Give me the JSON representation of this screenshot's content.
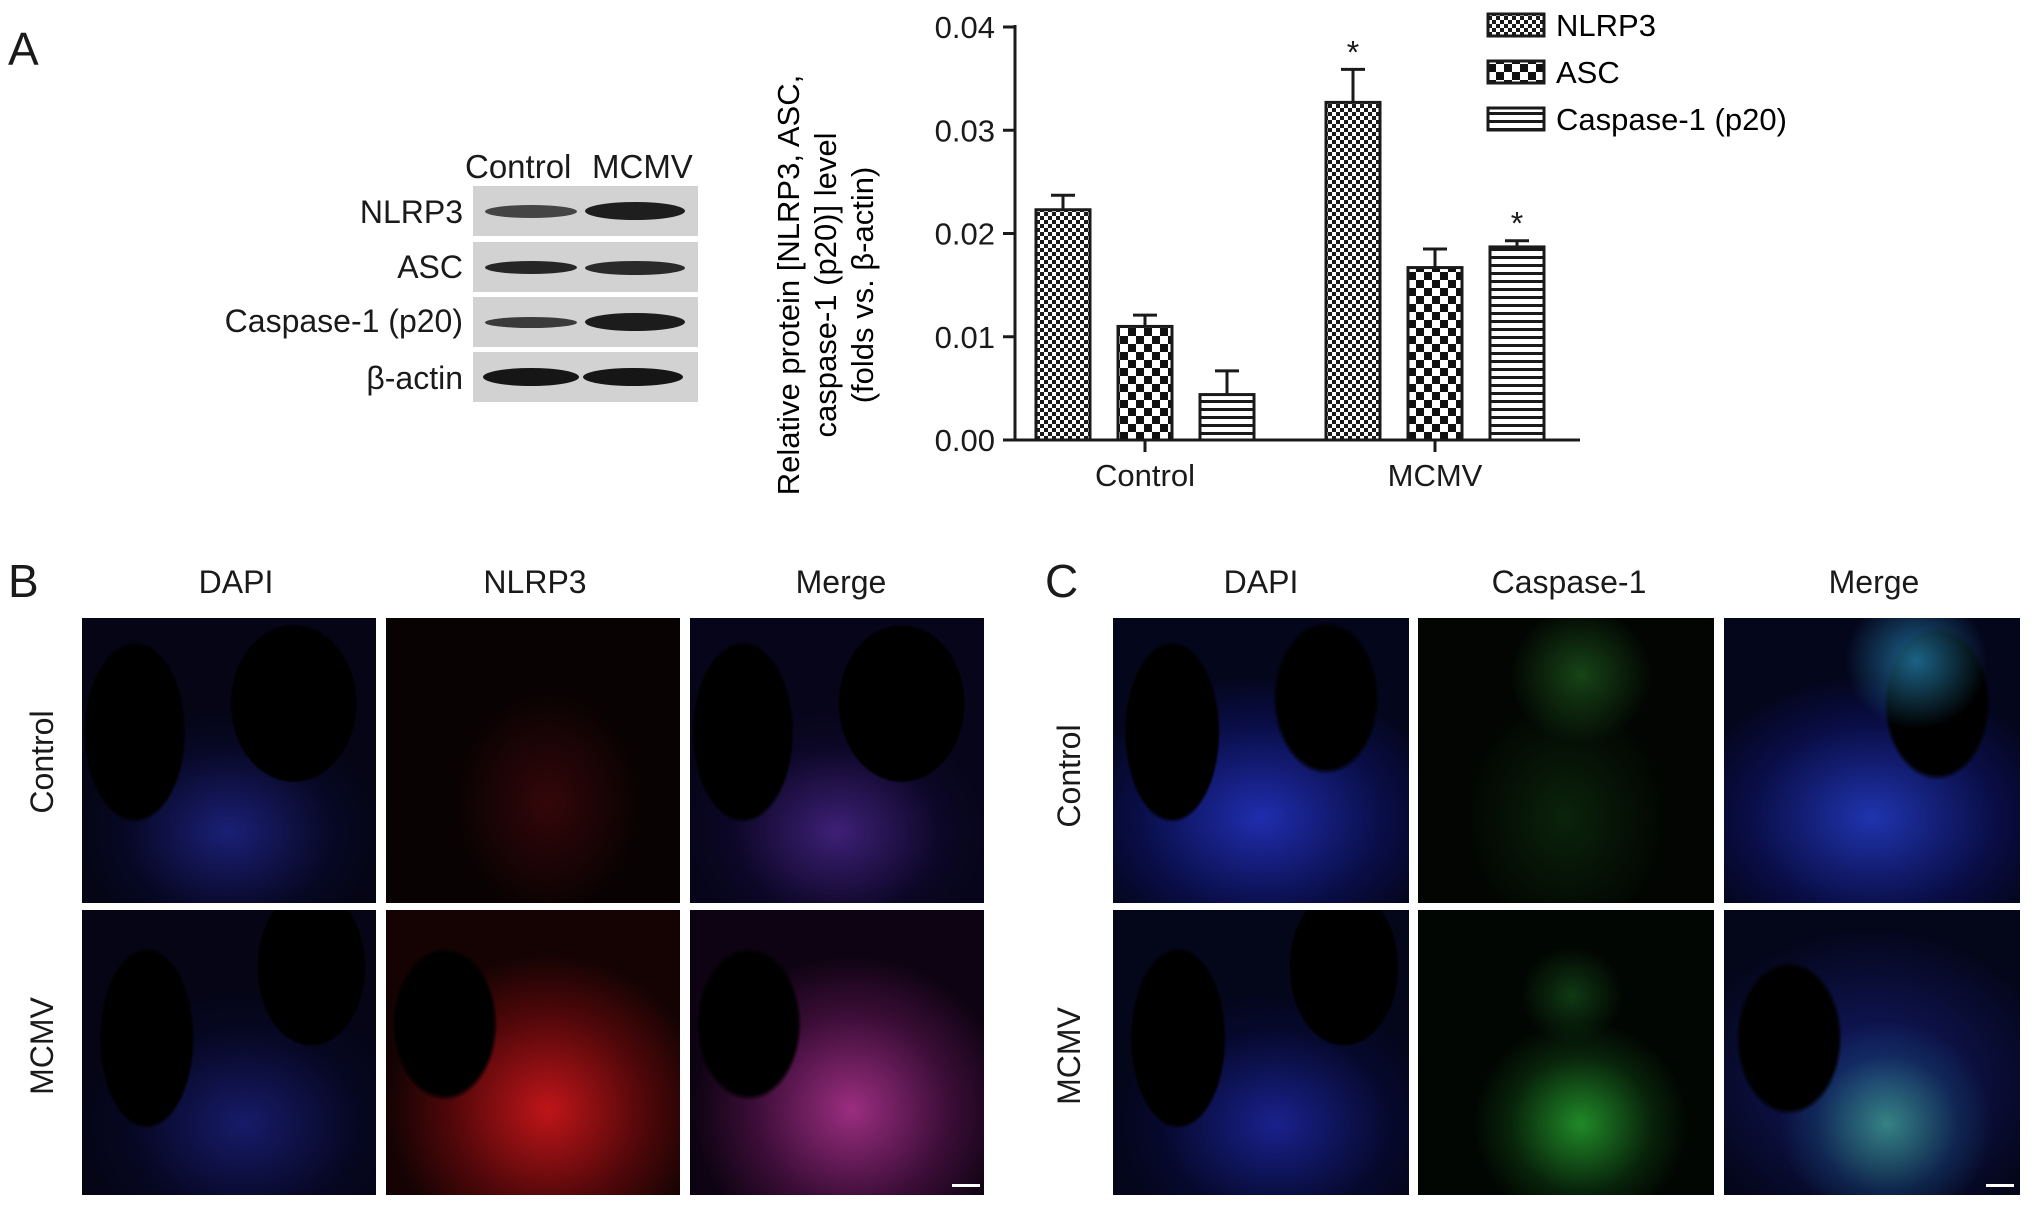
{
  "panels": {
    "a": {
      "letter": "A"
    },
    "b": {
      "letter": "B"
    },
    "c": {
      "letter": "C"
    }
  },
  "western_blot": {
    "lanes": [
      "Control",
      "MCMV"
    ],
    "rows": [
      "NLRP3",
      "ASC",
      "Caspase-1 (p20)",
      "β-actin"
    ]
  },
  "chart_data": {
    "type": "bar",
    "categories": [
      "Control",
      "MCMV"
    ],
    "series": [
      {
        "name": "NLRP3",
        "values": [
          0.0223,
          0.0327
        ],
        "errors": [
          0.0014,
          0.0032
        ],
        "pattern": "fine-check"
      },
      {
        "name": "ASC",
        "values": [
          0.011,
          0.0167
        ],
        "errors": [
          0.0011,
          0.0018
        ],
        "pattern": "coarse-check"
      },
      {
        "name": "Caspase-1 (p20)",
        "values": [
          0.0044,
          0.0187
        ],
        "errors": [
          0.0023,
          0.0006
        ],
        "pattern": "horizontal-lines"
      }
    ],
    "significance": [
      {
        "series": "NLRP3",
        "category": "MCMV",
        "mark": "*"
      },
      {
        "series": "Caspase-1 (p20)",
        "category": "MCMV",
        "mark": "*"
      }
    ],
    "ylabel": "Relative protein [NLRP3, ASC, caspase-1 (p20)] level (folds vs. β-actin)",
    "ylabel_lines": [
      "Relative protein [NLRP3, ASC,",
      "caspase-1 (p20)] level",
      "(folds vs. β-actin)"
    ],
    "ylim": [
      0,
      0.04
    ],
    "yticks": [
      "0.00",
      "0.01",
      "0.02",
      "0.03",
      "0.04"
    ],
    "grid": false,
    "legend_position": "top-right"
  },
  "panel_b": {
    "columns": [
      "DAPI",
      "NLRP3",
      "Merge"
    ],
    "rows": [
      "Control",
      "MCMV"
    ]
  },
  "panel_c": {
    "columns": [
      "DAPI",
      "Caspase-1",
      "Merge"
    ],
    "rows": [
      "Control",
      "MCMV"
    ]
  },
  "colors": {
    "dapi": "#1a22a0",
    "nlrp3": "#c8161a",
    "caspase1": "#1fae2a",
    "merge_b": "#8a2a8f",
    "merge_c": "#2a6fb0"
  }
}
